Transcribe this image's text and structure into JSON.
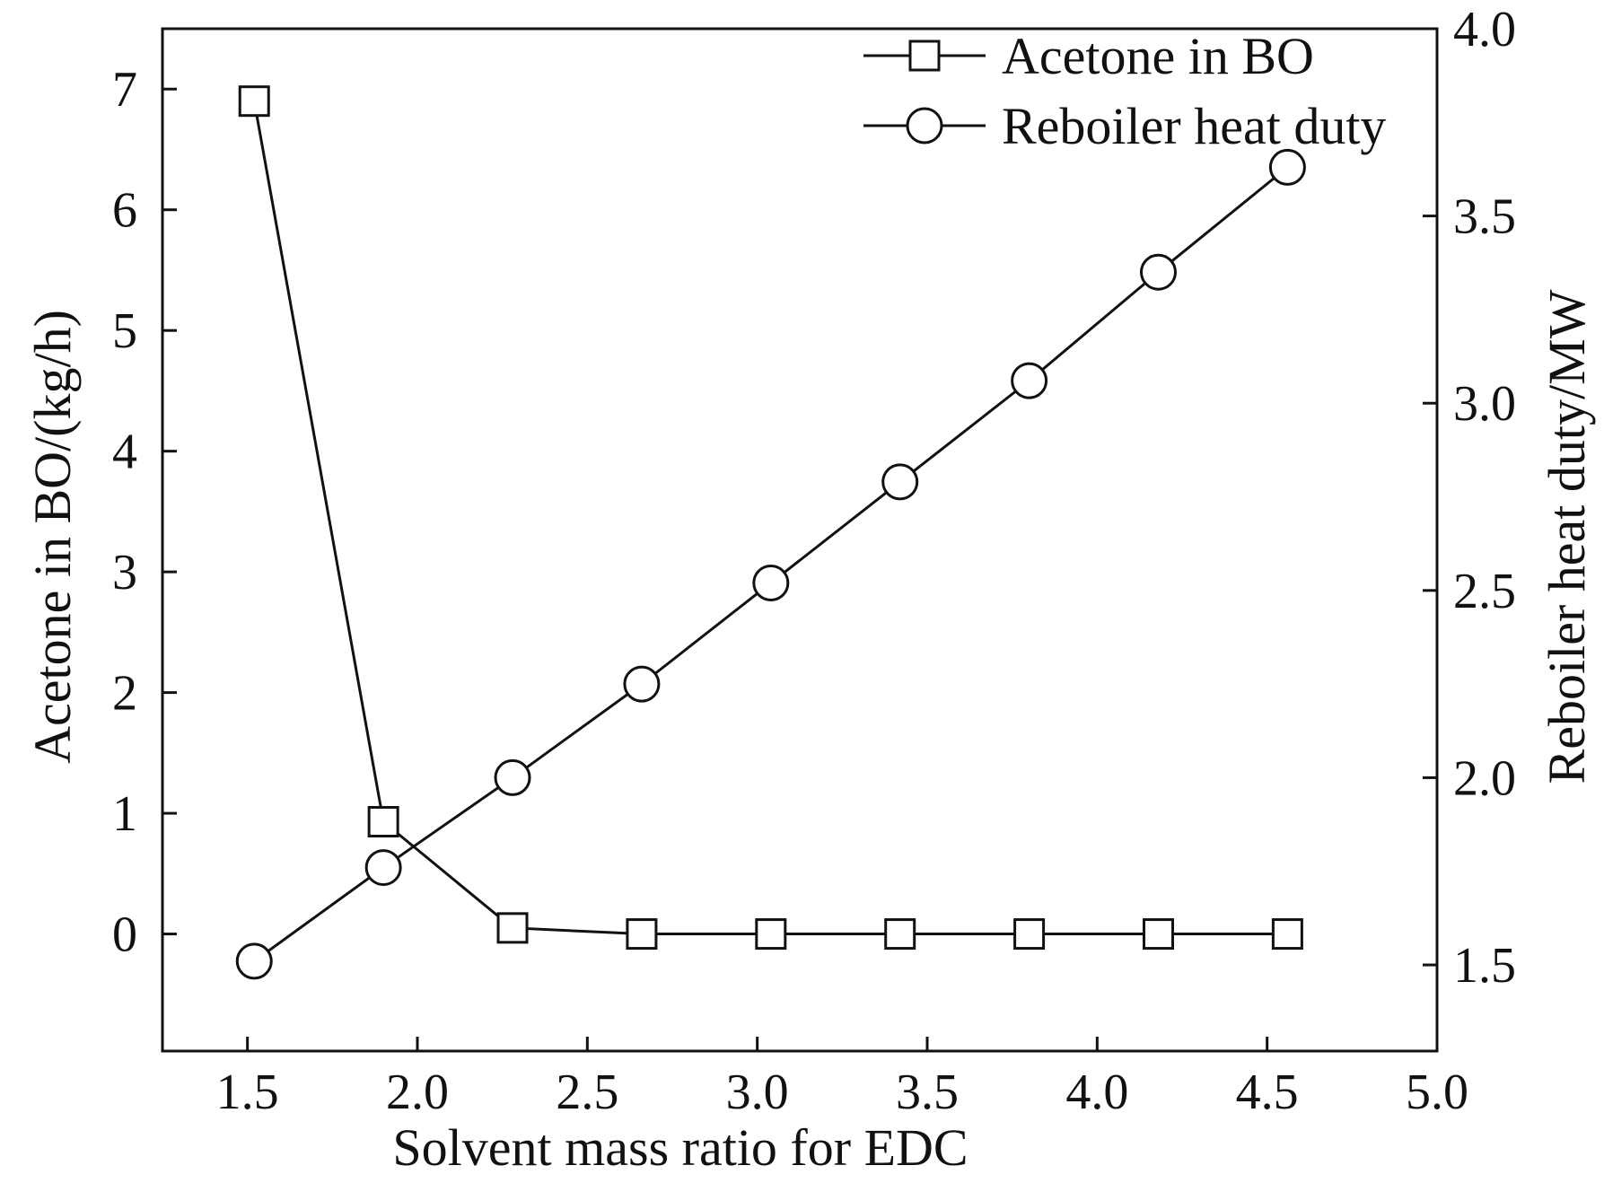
{
  "chart_data": {
    "type": "line",
    "xlabel": "Solvent mass ratio for EDC",
    "ylabel_left": "Acetone in BO/(kg/h)",
    "ylabel_right": "Reboiler heat duty/MW",
    "xlim": [
      1.25,
      5.0
    ],
    "ylim_left": [
      -0.97,
      7.5
    ],
    "ylim_right": [
      1.27,
      4.0
    ],
    "xticks": [
      "1.5",
      "2.0",
      "2.5",
      "3.0",
      "3.5",
      "4.0",
      "4.5",
      "5.0"
    ],
    "yticks_left": [
      "0",
      "1",
      "2",
      "3",
      "4",
      "5",
      "6",
      "7"
    ],
    "yticks_right": [
      "1.5",
      "2.0",
      "2.5",
      "3.0",
      "3.5",
      "4.0"
    ],
    "legend_position": "top-right",
    "x": [
      1.52,
      1.9,
      2.28,
      2.66,
      3.04,
      3.42,
      3.8,
      4.18,
      4.56
    ],
    "series": [
      {
        "name": "Acetone in BO",
        "axis": "left",
        "marker": "square",
        "values": [
          6.9,
          0.93,
          0.05,
          0.0,
          0.0,
          0.0,
          0.0,
          0.0,
          0.0
        ]
      },
      {
        "name": "Reboiler heat duty",
        "axis": "right",
        "marker": "circle",
        "values": [
          1.51,
          1.76,
          2.0,
          2.25,
          2.52,
          2.79,
          3.06,
          3.35,
          3.63
        ]
      }
    ]
  }
}
